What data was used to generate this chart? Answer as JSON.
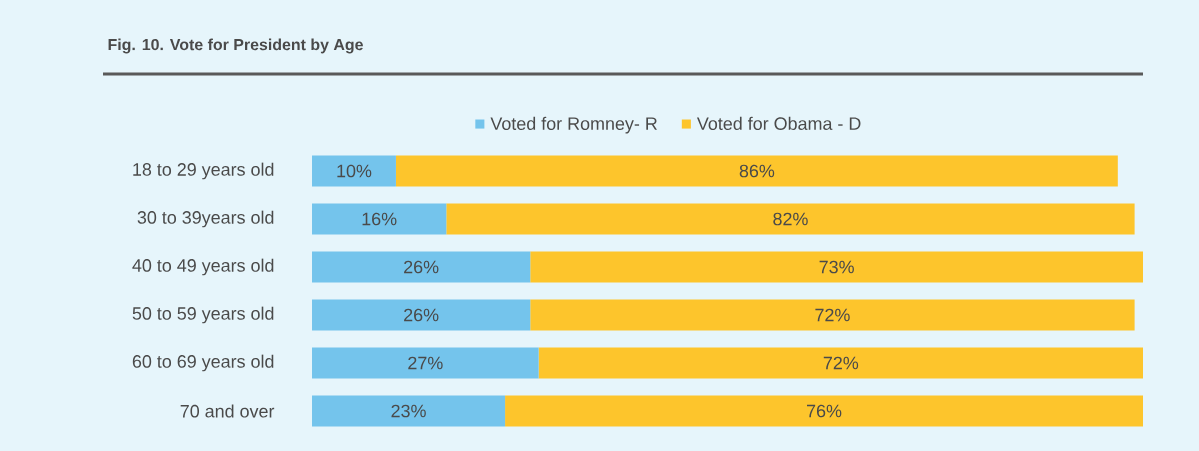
{
  "chart_data": {
    "type": "bar",
    "orientation": "horizontal",
    "stacked": true,
    "title": "Fig. 10. Vote for President by Age",
    "categories": [
      "18 to 29 years old",
      "30 to 39years old",
      "40 to 49 years old",
      "50 to 59 years old",
      "60 to 69 years old",
      "70 and over"
    ],
    "series": [
      {
        "name": "Voted for Romney- R",
        "color": "#74c4ec",
        "values": [
          10,
          16,
          26,
          26,
          27,
          23
        ],
        "value_labels": [
          "10%",
          "16%",
          "26%",
          "26%",
          "27%",
          "23%"
        ]
      },
      {
        "name": "Voted for Obama - D",
        "color": "#fdc52c",
        "values": [
          86,
          82,
          73,
          72,
          72,
          76
        ],
        "value_labels": [
          "86%",
          "82%",
          "73%",
          "72%",
          "72%",
          "76%"
        ]
      }
    ],
    "legend": "top"
  }
}
